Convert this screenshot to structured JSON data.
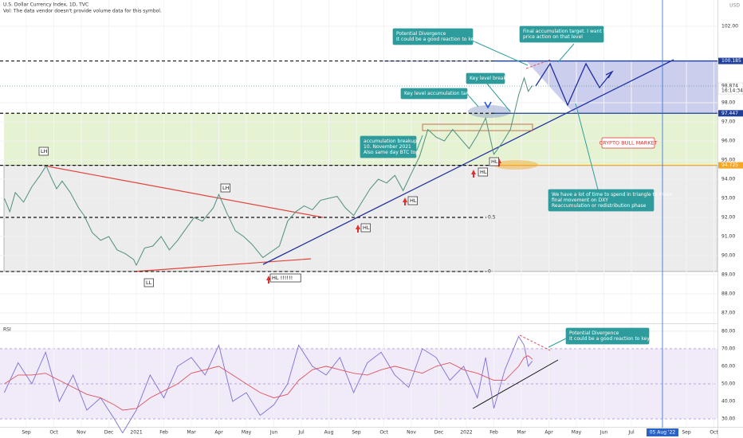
{
  "chart_data": [
    {
      "type": "line",
      "title": "U.S. Dollar Currency Index, 1D, TVC",
      "subtitle": "Vol: The data vendor doesn't provide volume data for this symbol.",
      "currency": "USD",
      "color": "#4f8f7f",
      "x": [
        -0.8,
        -0.6,
        -0.4,
        -0.1,
        0.2,
        0.5,
        0.72,
        0.9,
        1.1,
        1.3,
        1.6,
        1.9,
        2.1,
        2.4,
        2.7,
        3.0,
        3.3,
        3.6,
        3.9,
        4.0,
        4.3,
        4.6,
        4.9,
        5.2,
        5.5,
        5.8,
        6.1,
        6.4,
        6.8,
        7.0,
        7.3,
        7.6,
        7.9,
        8.2,
        8.6,
        8.9,
        9.2,
        9.5,
        9.8,
        10.1,
        10.4,
        10.7,
        11.0,
        11.3,
        11.6,
        11.9,
        12.2,
        12.5,
        12.8,
        13.1,
        13.4,
        13.7,
        14.0,
        14.3,
        14.6,
        14.9,
        15.2,
        15.5,
        15.8,
        16.1,
        16.4,
        16.7,
        17.0,
        17.3,
        17.6,
        17.9,
        18.1,
        18.25,
        18.4
      ],
      "values": [
        93.0,
        92.3,
        93.3,
        92.8,
        93.6,
        94.2,
        94.7,
        94.1,
        93.5,
        93.9,
        93.3,
        92.5,
        92.1,
        91.2,
        90.8,
        91.0,
        90.3,
        90.1,
        89.8,
        89.5,
        90.4,
        90.5,
        91.0,
        90.3,
        90.8,
        91.4,
        92.0,
        91.8,
        92.5,
        93.2,
        92.2,
        91.3,
        91.0,
        90.6,
        89.9,
        90.2,
        90.5,
        91.8,
        92.3,
        92.6,
        92.4,
        92.9,
        93.0,
        93.1,
        92.5,
        92.1,
        92.8,
        93.5,
        94.0,
        93.8,
        94.2,
        93.4,
        94.3,
        95.2,
        96.6,
        96.2,
        96.0,
        96.6,
        96.1,
        95.6,
        96.3,
        97.2,
        95.3,
        95.9,
        96.6,
        98.4,
        99.3,
        98.6,
        98.9
      ],
      "xlim": [
        -0.957,
        25.13
      ],
      "ylim": [
        86.5,
        103.375
      ],
      "yticks": [
        {
          "value": 102,
          "label": "102.00"
        },
        {
          "value": 98,
          "label": "98.00"
        },
        {
          "value": 97,
          "label": "97.00"
        },
        {
          "value": 96,
          "label": "96.00"
        },
        {
          "value": 95,
          "label": "95.00"
        },
        {
          "value": 94,
          "label": "94.00"
        },
        {
          "value": 93,
          "label": "93.00"
        },
        {
          "value": 92,
          "label": "92.00"
        },
        {
          "value": 91,
          "label": "91.00"
        },
        {
          "value": 90,
          "label": "90.00"
        },
        {
          "value": 89,
          "label": "89.00"
        },
        {
          "value": 88,
          "label": "88.00"
        },
        {
          "value": 87,
          "label": "87.00"
        }
      ],
      "last_price": {
        "value": 98.874,
        "label": "98.874"
      },
      "countdown": "16:14:34",
      "levels": [
        {
          "value": 100.185,
          "label": "100.185",
          "color": "#1f3f99"
        },
        {
          "value": 97.447,
          "label": "97.447",
          "color": "#1f3f99"
        },
        {
          "value": 94.725,
          "label": "94.725",
          "color": "#f5a623"
        }
      ],
      "fib_levels": [
        {
          "value": 92.0,
          "label": "0.5"
        },
        {
          "value": 89.17,
          "label": "0"
        }
      ],
      "annotations": [
        {
          "lines": [
            "Potential Divergence",
            "It could be a good reaction to key level"
          ]
        },
        {
          "lines": [
            "Final accumulation target. I want to see very hard",
            "price action on that level"
          ]
        },
        {
          "lines": [
            "Key level breakup"
          ]
        },
        {
          "lines": [
            "Key level accumulation target"
          ]
        },
        {
          "lines": [
            "accumulation breakup",
            "10. November 2021",
            "Also same day BTC top"
          ]
        },
        {
          "lines": [
            "CRYPTO BULL MARKET"
          ]
        },
        {
          "lines": [
            "We have a lot of time to spend in triangle to make",
            "final movement on DXY",
            "Reaccumulation or redistribution phase"
          ]
        }
      ],
      "markers": [
        "LH",
        "LH",
        "LL",
        "HL !!!!!!",
        "HL",
        "HL",
        "HL",
        "HL"
      ]
    },
    {
      "type": "line",
      "title": "RSI",
      "x": [
        -0.8,
        -0.3,
        0.2,
        0.7,
        1.2,
        1.7,
        2.2,
        2.7,
        3.2,
        3.5,
        4.0,
        4.5,
        5.0,
        5.5,
        6.0,
        6.5,
        7.0,
        7.5,
        8.0,
        8.5,
        9.0,
        9.5,
        9.9,
        10.4,
        10.9,
        11.4,
        11.9,
        12.4,
        12.9,
        13.4,
        13.9,
        14.4,
        14.9,
        15.4,
        15.9,
        16.4,
        16.7,
        17.0,
        17.4,
        17.9,
        18.1,
        18.25,
        18.4
      ],
      "series": [
        {
          "color": "#7e6fd6",
          "values": [
            45,
            62,
            50,
            68,
            40,
            55,
            35,
            42,
            30,
            22,
            35,
            55,
            42,
            60,
            65,
            55,
            72,
            40,
            45,
            32,
            38,
            50,
            72,
            60,
            55,
            65,
            45,
            62,
            68,
            55,
            48,
            70,
            65,
            52,
            60,
            42,
            65,
            36,
            58,
            77,
            72,
            60,
            63
          ]
        },
        {
          "color": "#e0525f",
          "values": [
            50,
            55,
            55,
            56,
            52,
            48,
            44,
            42,
            38,
            35,
            36,
            42,
            46,
            50,
            56,
            58,
            60,
            55,
            50,
            45,
            42,
            44,
            52,
            58,
            60,
            58,
            56,
            55,
            58,
            60,
            58,
            56,
            60,
            62,
            58,
            56,
            54,
            52,
            52,
            60,
            65,
            66,
            64
          ]
        }
      ],
      "xlim": [
        -0.957,
        25.13
      ],
      "ylim": [
        25.9,
        83.6
      ],
      "yticks": [
        {
          "value": 80,
          "label": "80.00"
        },
        {
          "value": 70,
          "label": "70.00"
        },
        {
          "value": 60,
          "label": "60.00"
        },
        {
          "value": 50,
          "label": "50.00"
        },
        {
          "value": 40,
          "label": "40.00"
        },
        {
          "value": 30,
          "label": "30.00"
        }
      ],
      "xticks": [
        {
          "value": 0,
          "label": "Sep"
        },
        {
          "value": 1,
          "label": "Oct"
        },
        {
          "value": 2,
          "label": "Nov"
        },
        {
          "value": 3,
          "label": "Dec"
        },
        {
          "value": 4,
          "label": "2021"
        },
        {
          "value": 5,
          "label": "Feb"
        },
        {
          "value": 6,
          "label": "Mar"
        },
        {
          "value": 7,
          "label": "Apr"
        },
        {
          "value": 8,
          "label": "May"
        },
        {
          "value": 9,
          "label": "Jun"
        },
        {
          "value": 10,
          "label": "Jul"
        },
        {
          "value": 11,
          "label": "Aug"
        },
        {
          "value": 12,
          "label": "Sep"
        },
        {
          "value": 13,
          "label": "Oct"
        },
        {
          "value": 14,
          "label": "Nov"
        },
        {
          "value": 15,
          "label": "Dec"
        },
        {
          "value": 16,
          "label": "2022"
        },
        {
          "value": 17,
          "label": "Feb"
        },
        {
          "value": 18,
          "label": "Mar"
        },
        {
          "value": 19,
          "label": "Apr"
        },
        {
          "value": 20,
          "label": "May"
        },
        {
          "value": 21,
          "label": "Jun"
        },
        {
          "value": 22,
          "label": "Jul"
        },
        {
          "value": 24,
          "label": "Sep"
        },
        {
          "value": 25,
          "label": "Oct"
        }
      ],
      "cursor_x": {
        "value": 23.13,
        "label": "05 Aug '22"
      },
      "annotations": [
        {
          "lines": [
            "Potential Divergence",
            "It could be a good reaction to key level"
          ]
        }
      ]
    }
  ]
}
